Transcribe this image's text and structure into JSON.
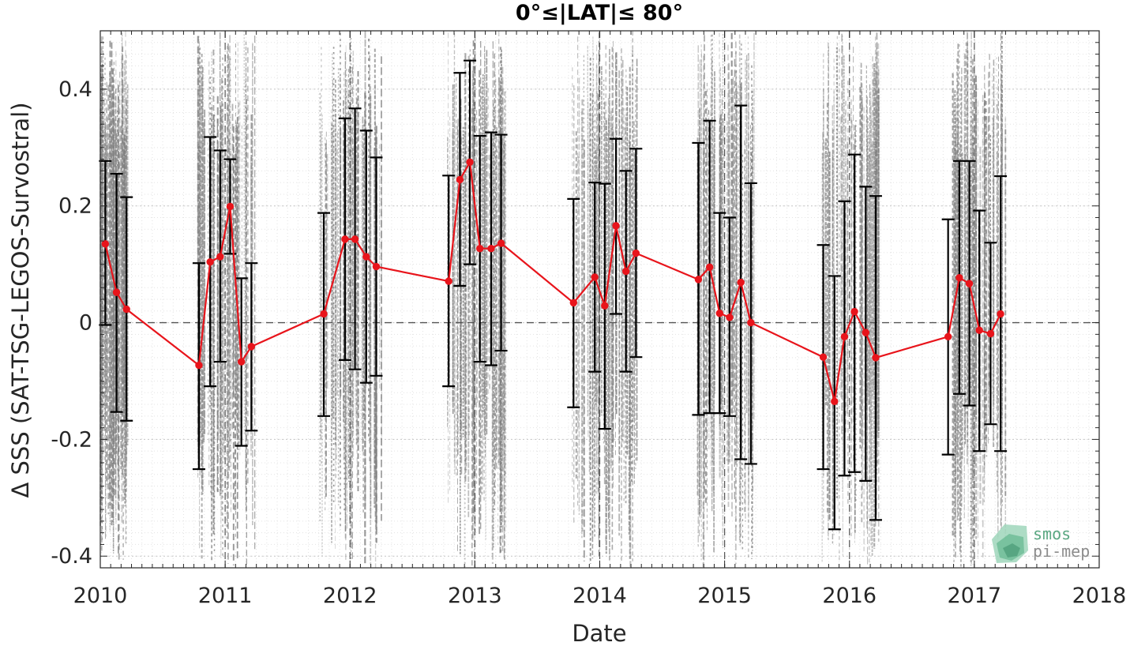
{
  "chart_data": {
    "type": "line",
    "title": "0°≤|LAT|≤ 80°",
    "xlabel": "Date",
    "ylabel": "Δ SSS (SAT-TSG-LEGOS-Survostral)",
    "xlim": [
      2010,
      2018
    ],
    "ylim": [
      -0.42,
      0.5
    ],
    "x_ticks": [
      2010,
      2011,
      2012,
      2013,
      2014,
      2015,
      2016,
      2017,
      2018
    ],
    "x_tick_labels": [
      "2010",
      "2011",
      "2012",
      "2013",
      "2014",
      "2015",
      "2016",
      "2017",
      "2018"
    ],
    "y_ticks": [
      -0.4,
      -0.2,
      0,
      0.2,
      0.4
    ],
    "y_tick_labels": [
      "-0.4",
      "-0.2",
      "0",
      "0.2",
      "0.4"
    ],
    "grid": true,
    "minor_grid": true,
    "zero_line": true,
    "series": [
      {
        "color": "#e8141b",
        "marker": "circle",
        "x": [
          2010.04,
          2010.13,
          2010.21,
          2010.79,
          2010.88,
          2010.96,
          2011.04,
          2011.13,
          2011.21,
          2011.79,
          2011.96,
          2012.04,
          2012.13,
          2012.21,
          2012.79,
          2012.88,
          2012.96,
          2013.04,
          2013.13,
          2013.21,
          2013.79,
          2013.96,
          2014.04,
          2014.13,
          2014.21,
          2014.29,
          2014.79,
          2014.88,
          2014.96,
          2015.04,
          2015.13,
          2015.21,
          2015.79,
          2015.88,
          2015.96,
          2016.04,
          2016.13,
          2016.21,
          2016.79,
          2016.88,
          2016.96,
          2017.04,
          2017.13,
          2017.21
        ],
        "y": [
          0.135,
          0.052,
          0.023,
          -0.073,
          0.104,
          0.113,
          0.199,
          -0.067,
          -0.041,
          0.015,
          0.143,
          0.143,
          0.113,
          0.096,
          0.071,
          0.245,
          0.275,
          0.127,
          0.127,
          0.136,
          0.034,
          0.078,
          0.029,
          0.166,
          0.088,
          0.119,
          0.074,
          0.095,
          0.016,
          0.009,
          0.069,
          0.0,
          -0.059,
          -0.135,
          -0.024,
          0.019,
          -0.017,
          -0.06,
          -0.024,
          0.077,
          0.067,
          -0.013,
          -0.019,
          0.015
        ],
        "y_lower": [
          -0.004,
          -0.153,
          -0.168,
          -0.251,
          -0.109,
          -0.067,
          0.118,
          -0.211,
          -0.185,
          -0.16,
          -0.064,
          -0.08,
          -0.103,
          -0.091,
          -0.109,
          0.063,
          0.1,
          -0.067,
          -0.073,
          -0.048,
          -0.145,
          -0.084,
          -0.182,
          0.015,
          -0.084,
          -0.059,
          -0.158,
          -0.155,
          -0.155,
          -0.16,
          -0.234,
          -0.242,
          -0.251,
          -0.354,
          -0.262,
          -0.256,
          -0.271,
          -0.338,
          -0.226,
          -0.122,
          -0.142,
          -0.22,
          -0.174,
          -0.22
        ],
        "y_upper": [
          0.277,
          0.255,
          0.215,
          0.102,
          0.318,
          0.295,
          0.28,
          0.076,
          0.102,
          0.188,
          0.35,
          0.367,
          0.329,
          0.283,
          0.252,
          0.428,
          0.449,
          0.32,
          0.326,
          0.322,
          0.212,
          0.24,
          0.238,
          0.315,
          0.26,
          0.298,
          0.308,
          0.346,
          0.188,
          0.18,
          0.372,
          0.239,
          0.133,
          0.08,
          0.208,
          0.288,
          0.233,
          0.217,
          0.177,
          0.277,
          0.277,
          0.192,
          0.137,
          0.251
        ]
      }
    ],
    "background_scatter": {
      "color": "#808080",
      "seasons": [
        [
          2010.0,
          2010.22
        ],
        [
          2010.78,
          2011.24
        ],
        [
          2011.76,
          2012.26
        ],
        [
          2012.76,
          2013.26
        ],
        [
          2013.78,
          2014.3
        ],
        [
          2014.78,
          2015.24
        ],
        [
          2015.78,
          2016.24
        ],
        [
          2016.82,
          2017.25
        ]
      ]
    },
    "colors": {
      "error_bar": "#000000",
      "zero_line": "#555555",
      "grid": "#dcdcdc"
    }
  },
  "logo": {
    "line1": "smos",
    "line2": "pi-mep",
    "icon": "smos-logo-icon"
  }
}
